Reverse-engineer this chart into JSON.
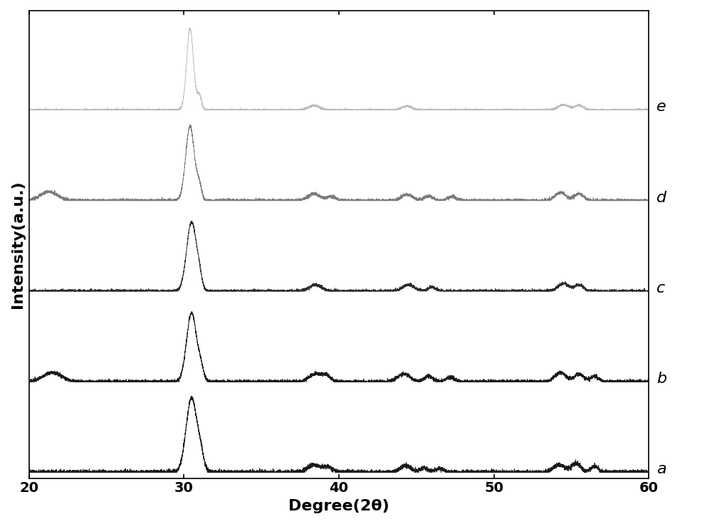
{
  "x_min": 20,
  "x_max": 60,
  "xlabel": "Degree(2θ)",
  "ylabel": "Intensity(a.u.)",
  "xticks": [
    20,
    30,
    40,
    50,
    60
  ],
  "curve_labels": [
    "a",
    "b",
    "c",
    "d",
    "e"
  ],
  "curve_colors_rgb": [
    "#1a1a1a",
    "#1a1a1a",
    "#2a2a2a",
    "#7a7a7a",
    "#c0b8c0"
  ],
  "label_fontsize": 16,
  "tick_fontsize": 14,
  "axis_label_fontsize": 16,
  "background_color": "#ffffff"
}
